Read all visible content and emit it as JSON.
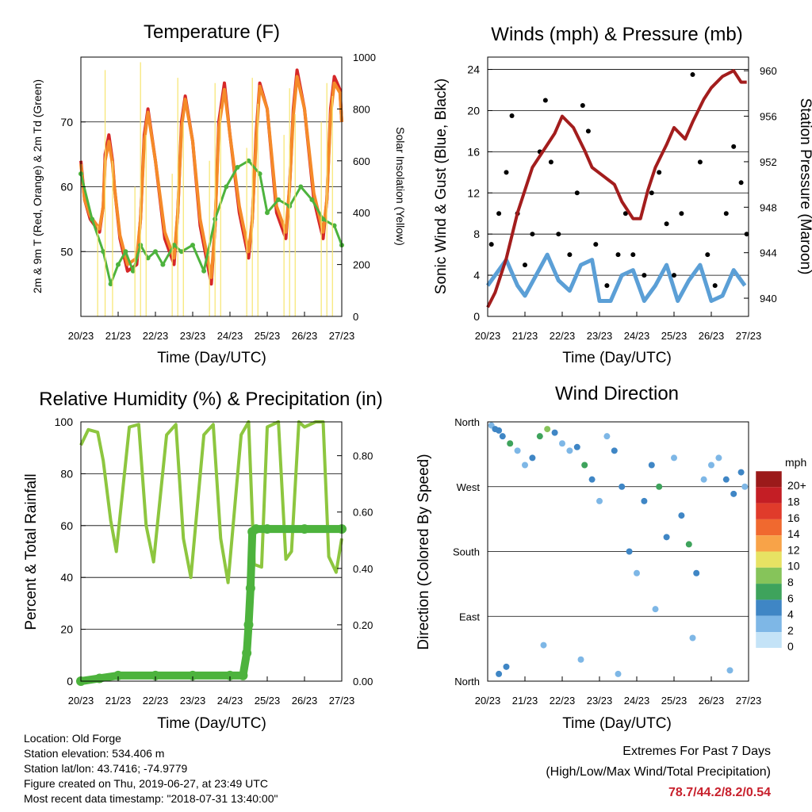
{
  "colors": {
    "temp_2m": "#d62728",
    "temp_9m": "#f58a29",
    "dewpoint": "#4db33d",
    "solar": "#f7e56e",
    "wind": "#5b9fd6",
    "gust": "#000000",
    "pressure": "#a31d1d",
    "humidity": "#8dc63f",
    "precip": "#4db33d",
    "extremes": "#c8202c"
  },
  "chart_data": [
    {
      "type": "line",
      "title": "Temperature (F)",
      "xlabel": "Time (Day/UTC)",
      "ylabel": "2m & 9m T (Red, Orange) & 2m Td (Green)",
      "ylabel_right": "Solar Insolation (Yellow)",
      "x_ticks": [
        "20/23",
        "21/23",
        "22/23",
        "23/23",
        "24/23",
        "25/23",
        "26/23",
        "27/23"
      ],
      "xlim": [
        0,
        7
      ],
      "ylim": [
        40,
        80
      ],
      "y_ticks": [
        50,
        60,
        70
      ],
      "ylim_right": [
        0,
        1000
      ],
      "y_ticks_right": [
        0,
        200,
        400,
        600,
        800,
        1000
      ],
      "grid": "horizontal",
      "series": [
        {
          "name": "2m T",
          "axis": "left",
          "x": [
            0,
            0.1,
            0.25,
            0.5,
            0.6,
            0.65,
            0.75,
            0.85,
            0.9,
            1.05,
            1.25,
            1.5,
            1.6,
            1.7,
            1.8,
            2.0,
            2.25,
            2.5,
            2.6,
            2.7,
            2.8,
            3.0,
            3.2,
            3.5,
            3.6,
            3.7,
            3.85,
            4.0,
            4.25,
            4.5,
            4.6,
            4.7,
            4.8,
            5.0,
            5.25,
            5.5,
            5.6,
            5.7,
            5.8,
            6.0,
            6.25,
            6.5,
            6.6,
            6.7,
            6.8,
            6.95,
            7.0
          ],
          "y": [
            64,
            58,
            55,
            53,
            57,
            65,
            68,
            64,
            60,
            52,
            47,
            48,
            55,
            68,
            72,
            64,
            52,
            48,
            56,
            70,
            74,
            67,
            54,
            45,
            54,
            70,
            76,
            68,
            56,
            49,
            55,
            68,
            76,
            72,
            56,
            52,
            60,
            72,
            78,
            72,
            58,
            52,
            58,
            72,
            77,
            75,
            70
          ]
        },
        {
          "name": "9m T",
          "axis": "left",
          "x": [
            0,
            0.1,
            0.25,
            0.5,
            0.6,
            0.65,
            0.75,
            0.85,
            0.9,
            1.05,
            1.25,
            1.5,
            1.6,
            1.7,
            1.8,
            2.0,
            2.25,
            2.5,
            2.6,
            2.7,
            2.8,
            3.0,
            3.2,
            3.5,
            3.6,
            3.7,
            3.85,
            4.0,
            4.25,
            4.5,
            4.6,
            4.7,
            4.8,
            5.0,
            5.25,
            5.5,
            5.6,
            5.7,
            5.8,
            6.0,
            6.25,
            6.5,
            6.6,
            6.7,
            6.8,
            6.95,
            7.0
          ],
          "y": [
            63.5,
            58,
            55.5,
            53.5,
            57,
            64,
            67,
            63.5,
            60,
            52.5,
            48,
            49,
            55,
            67,
            71.5,
            64,
            53,
            49,
            56,
            69,
            73.5,
            67,
            55,
            46,
            54,
            69,
            75,
            68,
            57,
            50,
            55,
            67,
            75.5,
            72,
            57,
            53,
            60,
            71,
            77,
            72,
            59,
            53,
            58,
            71,
            76,
            74.5,
            70
          ]
        },
        {
          "name": "2m Td",
          "axis": "left",
          "x": [
            0,
            0.3,
            0.6,
            0.8,
            1.0,
            1.2,
            1.4,
            1.6,
            1.8,
            2.0,
            2.2,
            2.5,
            2.7,
            3.0,
            3.3,
            3.6,
            3.9,
            4.2,
            4.5,
            4.8,
            5.0,
            5.3,
            5.6,
            5.9,
            6.2,
            6.5,
            6.8,
            7.0
          ],
          "y": [
            62,
            55,
            50,
            45,
            48,
            50,
            47,
            51,
            49,
            50,
            48,
            51,
            50,
            51,
            47,
            55,
            60,
            63,
            64,
            62,
            56,
            58,
            57,
            60,
            58,
            55,
            54,
            51
          ]
        },
        {
          "name": "Solar Insolation",
          "axis": "right",
          "type": "impulse",
          "x": [
            0.45,
            0.65,
            0.85,
            1.45,
            1.6,
            1.75,
            2.45,
            2.6,
            2.75,
            3.45,
            3.6,
            3.75,
            4.45,
            4.6,
            4.75,
            5.45,
            5.6,
            5.75,
            6.45,
            6.6,
            6.75
          ],
          "y": [
            350,
            950,
            600,
            500,
            980,
            700,
            550,
            920,
            750,
            600,
            900,
            800,
            650,
            920,
            820,
            700,
            880,
            780,
            750,
            900,
            850
          ]
        }
      ]
    },
    {
      "type": "scatter",
      "title": "Winds (mph) & Pressure (mb)",
      "xlabel": "Time (Day/UTC)",
      "ylabel": "Sonic Wind & Gust (Blue, Black)",
      "ylabel_right": "Station Pressure (Maroon)",
      "x_ticks": [
        "20/23",
        "21/23",
        "22/23",
        "23/23",
        "24/23",
        "25/23",
        "26/23",
        "27/23"
      ],
      "xlim": [
        0,
        7
      ],
      "ylim": [
        0,
        25.2
      ],
      "y_ticks": [
        0,
        4,
        8,
        12,
        16,
        20,
        24
      ],
      "ylim_right": [
        938.4,
        961.2
      ],
      "y_ticks_right": [
        940,
        944,
        948,
        952,
        956,
        960
      ],
      "grid": "horizontal",
      "series": [
        {
          "name": "Sonic Wind",
          "axis": "left",
          "x": [
            0,
            0.2,
            0.5,
            0.8,
            1.0,
            1.3,
            1.6,
            1.9,
            2.2,
            2.5,
            2.8,
            3.0,
            3.3,
            3.6,
            3.9,
            4.2,
            4.5,
            4.8,
            5.1,
            5.4,
            5.7,
            6.0,
            6.3,
            6.6,
            6.9
          ],
          "y": [
            3,
            4,
            5.5,
            3,
            2,
            4,
            6,
            3.5,
            2.5,
            5,
            5.5,
            1.5,
            1.5,
            4,
            4.5,
            1.5,
            3,
            5,
            1.5,
            3.5,
            5,
            1.5,
            2,
            4.5,
            3
          ]
        },
        {
          "name": "Gust",
          "axis": "left",
          "x": [
            0.1,
            0.3,
            0.5,
            0.65,
            0.8,
            1.0,
            1.2,
            1.4,
            1.55,
            1.7,
            1.9,
            2.2,
            2.4,
            2.55,
            2.7,
            2.9,
            3.2,
            3.5,
            3.7,
            3.9,
            4.2,
            4.4,
            4.6,
            4.8,
            5.0,
            5.2,
            5.5,
            5.7,
            5.9,
            6.1,
            6.4,
            6.6,
            6.8,
            6.95
          ],
          "y": [
            7,
            10,
            14,
            19.5,
            10,
            5,
            8,
            16,
            21,
            15,
            8,
            6,
            12,
            20.5,
            18,
            7,
            3,
            6,
            10,
            6,
            4,
            12,
            14,
            9,
            4,
            10,
            23.5,
            15,
            6,
            3,
            10,
            16.5,
            13,
            8
          ]
        },
        {
          "name": "Station Pressure",
          "axis": "right",
          "x": [
            0,
            0.2,
            0.5,
            0.8,
            1.0,
            1.2,
            1.5,
            1.8,
            2.0,
            2.3,
            2.6,
            2.8,
            3.0,
            3.2,
            3.4,
            3.6,
            3.9,
            4.1,
            4.3,
            4.5,
            4.8,
            5.0,
            5.3,
            5.5,
            5.8,
            6.0,
            6.3,
            6.6,
            6.8,
            6.95
          ],
          "y": [
            939.2,
            940.5,
            943.5,
            947.5,
            949.5,
            951.5,
            953,
            954.5,
            956,
            955,
            953,
            951.5,
            951,
            950.5,
            950,
            948.5,
            947,
            947,
            949.5,
            951.5,
            953.5,
            955,
            954,
            955.5,
            957.5,
            958.5,
            959.5,
            960,
            959,
            959
          ]
        }
      ]
    },
    {
      "type": "line",
      "title": "Relative Humidity (%) & Precipitation (in)",
      "xlabel": "Time (Day/UTC)",
      "ylabel": "Percent & Total Rainfall",
      "x_ticks": [
        "20/23",
        "21/23",
        "22/23",
        "23/23",
        "24/23",
        "25/23",
        "26/23",
        "27/23"
      ],
      "xlim": [
        0,
        7
      ],
      "ylim": [
        0,
        100
      ],
      "y_ticks": [
        0,
        20,
        40,
        60,
        80,
        100
      ],
      "ylim_right": [
        0,
        0.92
      ],
      "y_ticks_right": [
        "0.00",
        "0.20",
        "0.40",
        "0.60",
        "0.80"
      ],
      "grid": "horizontal",
      "series": [
        {
          "name": "Relative Humidity",
          "axis": "left",
          "x": [
            0,
            0.2,
            0.45,
            0.6,
            0.8,
            0.95,
            1.3,
            1.55,
            1.75,
            1.95,
            2.3,
            2.55,
            2.75,
            2.95,
            3.3,
            3.55,
            3.75,
            3.95,
            4.3,
            4.5,
            4.65,
            4.85,
            5.0,
            5.3,
            5.5,
            5.65,
            5.85,
            6.0,
            6.3,
            6.5,
            6.65,
            6.85,
            7.0
          ],
          "y": [
            91,
            97,
            96,
            85,
            62,
            50,
            98,
            99,
            60,
            46,
            95,
            99,
            55,
            40,
            95,
            99,
            55,
            38,
            95,
            100,
            45,
            44,
            98,
            100,
            47,
            50,
            100,
            98,
            100,
            100,
            48,
            42,
            55
          ]
        },
        {
          "name": "Total Rainfall",
          "axis": "right",
          "x": [
            0,
            0.5,
            1.0,
            2.0,
            3.0,
            4.0,
            4.35,
            4.45,
            4.5,
            4.55,
            4.6,
            4.7,
            5.0,
            6.0,
            7.0
          ],
          "y": [
            0,
            0.01,
            0.02,
            0.02,
            0.02,
            0.02,
            0.02,
            0.1,
            0.2,
            0.33,
            0.53,
            0.54,
            0.54,
            0.54,
            0.54
          ]
        }
      ]
    },
    {
      "type": "scatter",
      "title": "Wind Direction",
      "xlabel": "Time (Day/UTC)",
      "ylabel": "Direction (Colored By Speed)",
      "x_ticks": [
        "20/23",
        "21/23",
        "22/23",
        "23/23",
        "24/23",
        "25/23",
        "26/23",
        "27/23"
      ],
      "xlim": [
        0,
        7
      ],
      "y_ticks": [
        "North",
        "West",
        "South",
        "East",
        "North"
      ],
      "legend": {
        "unit": "mph",
        "labels": [
          "20+",
          "18",
          "16",
          "14",
          "12",
          "10",
          "8",
          "6",
          "4",
          "2",
          "0"
        ],
        "colors": [
          "#9b1a1a",
          "#c41e25",
          "#e03b2b",
          "#f0692f",
          "#f8a348",
          "#e7e263",
          "#86c45a",
          "#3ea35c",
          "#3f86c5",
          "#7eb7e6",
          "#c4e3f7"
        ]
      },
      "ylim": [
        0,
        360
      ],
      "series": [
        {
          "name": "Direction",
          "axis": "left",
          "x": [
            0.1,
            0.2,
            0.3,
            0.4,
            0.6,
            0.8,
            1.0,
            1.2,
            1.4,
            1.6,
            1.8,
            2.0,
            2.2,
            2.4,
            2.6,
            2.8,
            3.0,
            3.2,
            3.4,
            3.6,
            3.8,
            4.0,
            4.2,
            4.4,
            4.6,
            4.8,
            5.0,
            5.2,
            5.4,
            5.6,
            5.8,
            6.0,
            6.2,
            6.4,
            6.6,
            6.8,
            6.9,
            0.3,
            0.5,
            1.5,
            2.5,
            3.5,
            4.5,
            5.5,
            6.5
          ],
          "y": [
            355,
            350,
            348,
            340,
            330,
            320,
            300,
            310,
            340,
            350,
            345,
            330,
            320,
            325,
            300,
            280,
            250,
            340,
            320,
            270,
            180,
            150,
            250,
            300,
            270,
            200,
            310,
            230,
            190,
            150,
            280,
            300,
            310,
            280,
            260,
            290,
            270,
            10,
            20,
            50,
            30,
            10,
            100,
            60,
            15
          ],
          "speed": [
            2,
            3,
            4,
            3,
            6,
            2,
            1,
            3,
            6,
            7,
            4,
            2,
            1,
            3,
            5,
            4,
            1,
            2,
            3,
            4,
            3,
            1,
            3,
            4,
            6,
            3,
            1,
            4,
            5,
            3,
            2,
            1,
            2,
            3,
            4,
            3,
            2,
            4,
            3,
            1,
            2,
            1,
            2,
            1,
            2
          ]
        }
      ]
    }
  ],
  "info": {
    "location": "Location: Old Forge",
    "elevation": "Station elevation: 534.406 m",
    "latlon": "Station lat/lon: 43.7416; -74.9779",
    "created": "Figure created on Thu, 2019-06-27, at 23:49 UTC",
    "recent": "Most recent data timestamp: \"2018-07-31 13:40:00\""
  },
  "extremes": {
    "title": "Extremes For Past 7 Days",
    "subtitle": "(High/Low/Max Wind/Total Precipitation)",
    "values": "78.7/44.2/8.2/0.54"
  }
}
